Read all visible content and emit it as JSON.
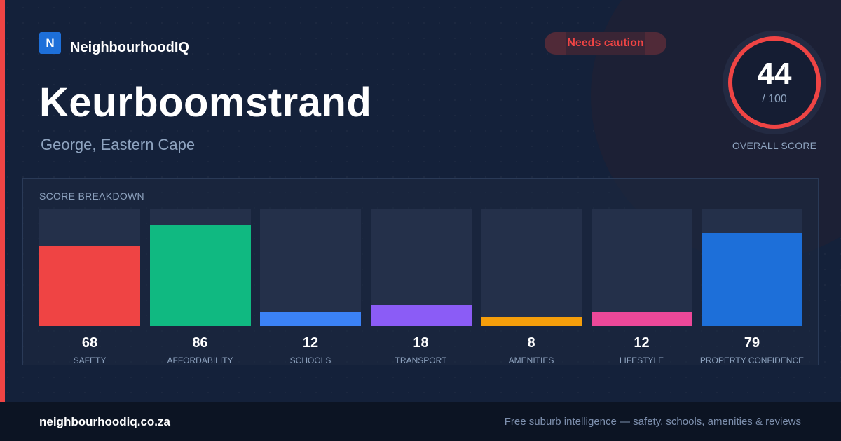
{
  "brand": {
    "logo_letter": "N",
    "name": "NeighbourhoodIQ"
  },
  "status_badge": {
    "label": "Needs caution",
    "color": "#ef4444"
  },
  "suburb": {
    "name": "Keurboomstrand",
    "location": "George, Eastern Cape"
  },
  "overall_score": {
    "value": "44",
    "max_label": "/ 100",
    "caption": "OVERALL SCORE",
    "fraction": 0.44,
    "ring_color": "#ef4444"
  },
  "breakdown": {
    "title": "SCORE BREAKDOWN"
  },
  "chart_data": {
    "type": "bar",
    "categories": [
      "SAFETY",
      "AFFORDABILITY",
      "SCHOOLS",
      "TRANSPORT",
      "AMENITIES",
      "LIFESTYLE",
      "PROPERTY CONFIDENCE"
    ],
    "values": [
      68,
      86,
      12,
      18,
      8,
      12,
      79
    ],
    "colors": [
      "#ef4444",
      "#10b981",
      "#3b82f6",
      "#8b5cf6",
      "#f59e0b",
      "#ec4899",
      "#1d6fd9"
    ],
    "ylim": [
      0,
      100
    ],
    "title": "SCORE BREAKDOWN",
    "grid": false
  },
  "footer": {
    "site": "neighbourhoodiq.co.za",
    "tagline": "Free suburb intelligence — safety, schools, amenities & reviews"
  }
}
